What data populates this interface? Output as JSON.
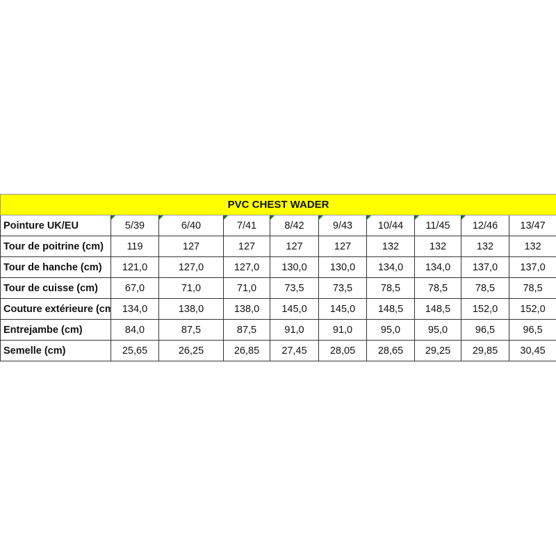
{
  "title": "PVC CHEST WADER",
  "colors": {
    "title_background": "#ffff00",
    "comment_marker": "#1a7a1a"
  },
  "rows": [
    {
      "label": "Pointure UK/EU",
      "values": [
        "5/39",
        "6/40",
        "7/41",
        "8/42",
        "9/43",
        "10/44",
        "11/45",
        "12/46",
        "13/47"
      ]
    },
    {
      "label": "Tour de poitrine (cm)",
      "values": [
        "119",
        "127",
        "127",
        "127",
        "127",
        "132",
        "132",
        "132",
        "132"
      ]
    },
    {
      "label": "Tour de hanche (cm)",
      "values": [
        "121,0",
        "127,0",
        "127,0",
        "130,0",
        "130,0",
        "134,0",
        "134,0",
        "137,0",
        "137,0"
      ]
    },
    {
      "label": "Tour de cuisse (cm)",
      "values": [
        "67,0",
        "71,0",
        "71,0",
        "73,5",
        "73,5",
        "78,5",
        "78,5",
        "78,5",
        "78,5"
      ]
    },
    {
      "label": "Couture extérieure (cm)",
      "values": [
        "134,0",
        "138,0",
        "138,0",
        "145,0",
        "145,0",
        "148,5",
        "148,5",
        "152,0",
        "152,0"
      ]
    },
    {
      "label": "Entrejambe (cm)",
      "values": [
        "84,0",
        "87,5",
        "87,5",
        "91,0",
        "91,0",
        "95,0",
        "95,0",
        "96,5",
        "96,5"
      ]
    },
    {
      "label": "Semelle (cm)",
      "values": [
        "25,65",
        "26,25",
        "26,85",
        "27,45",
        "28,05",
        "28,65",
        "29,25",
        "29,85",
        "30,45"
      ]
    }
  ]
}
